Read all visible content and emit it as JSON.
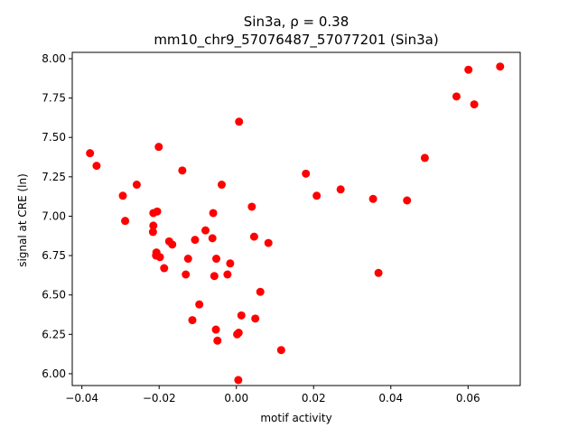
{
  "chart_data": {
    "type": "scatter",
    "title_line1": "Sin3a, ρ = 0.38",
    "title_line2": "mm10_chr9_57076487_57077201 (Sin3a)",
    "xlabel": "motif activity",
    "ylabel": "signal at CRE (ln)",
    "xlim": [
      -0.0425,
      0.0735
    ],
    "ylim": [
      5.925,
      8.04
    ],
    "xticks": [
      -0.04,
      -0.02,
      0.0,
      0.02,
      0.04,
      0.06
    ],
    "xtick_labels": [
      "−0.04",
      "−0.02",
      "0.00",
      "0.02",
      "0.04",
      "0.06"
    ],
    "yticks": [
      6.0,
      6.25,
      6.5,
      6.75,
      7.0,
      7.25,
      7.5,
      7.75,
      8.0
    ],
    "ytick_labels": [
      "6.00",
      "6.25",
      "6.50",
      "6.75",
      "7.00",
      "7.25",
      "7.50",
      "7.75",
      "8.00"
    ],
    "grid": false,
    "marker_color": "#ff0000",
    "points": [
      {
        "x": -0.0379,
        "y": 7.4
      },
      {
        "x": -0.0362,
        "y": 7.32
      },
      {
        "x": -0.0294,
        "y": 7.13
      },
      {
        "x": -0.0288,
        "y": 6.97
      },
      {
        "x": -0.0258,
        "y": 7.2
      },
      {
        "x": -0.0215,
        "y": 7.02
      },
      {
        "x": -0.0215,
        "y": 6.94
      },
      {
        "x": -0.0216,
        "y": 6.9
      },
      {
        "x": -0.0205,
        "y": 7.03
      },
      {
        "x": -0.0207,
        "y": 6.77
      },
      {
        "x": -0.0208,
        "y": 6.75
      },
      {
        "x": -0.0198,
        "y": 6.74
      },
      {
        "x": -0.0201,
        "y": 7.44
      },
      {
        "x": -0.0187,
        "y": 6.67
      },
      {
        "x": -0.0174,
        "y": 6.84
      },
      {
        "x": -0.0166,
        "y": 6.82
      },
      {
        "x": -0.014,
        "y": 7.29
      },
      {
        "x": -0.0131,
        "y": 6.63
      },
      {
        "x": -0.0125,
        "y": 6.73
      },
      {
        "x": -0.0114,
        "y": 6.34
      },
      {
        "x": -0.0107,
        "y": 6.85
      },
      {
        "x": -0.0096,
        "y": 6.44
      },
      {
        "x": -0.008,
        "y": 6.91
      },
      {
        "x": -0.0062,
        "y": 6.86
      },
      {
        "x": -0.006,
        "y": 7.02
      },
      {
        "x": -0.0057,
        "y": 6.62
      },
      {
        "x": -0.0052,
        "y": 6.73
      },
      {
        "x": -0.0053,
        "y": 6.28
      },
      {
        "x": -0.0049,
        "y": 6.21
      },
      {
        "x": -0.0038,
        "y": 7.2
      },
      {
        "x": -0.0023,
        "y": 6.63
      },
      {
        "x": -0.0016,
        "y": 6.7
      },
      {
        "x": 0.0002,
        "y": 6.25
      },
      {
        "x": 0.0006,
        "y": 6.26
      },
      {
        "x": 0.0005,
        "y": 5.96
      },
      {
        "x": 0.0007,
        "y": 7.6
      },
      {
        "x": 0.0013,
        "y": 6.37
      },
      {
        "x": 0.004,
        "y": 7.06
      },
      {
        "x": 0.0046,
        "y": 6.87
      },
      {
        "x": 0.0049,
        "y": 6.35
      },
      {
        "x": 0.0062,
        "y": 6.52
      },
      {
        "x": 0.0083,
        "y": 6.83
      },
      {
        "x": 0.0116,
        "y": 6.15
      },
      {
        "x": 0.018,
        "y": 7.27
      },
      {
        "x": 0.0208,
        "y": 7.13
      },
      {
        "x": 0.027,
        "y": 7.17
      },
      {
        "x": 0.0354,
        "y": 7.11
      },
      {
        "x": 0.0368,
        "y": 6.64
      },
      {
        "x": 0.0442,
        "y": 7.1
      },
      {
        "x": 0.0488,
        "y": 7.37
      },
      {
        "x": 0.057,
        "y": 7.76
      },
      {
        "x": 0.0601,
        "y": 7.93
      },
      {
        "x": 0.0616,
        "y": 7.71
      },
      {
        "x": 0.0683,
        "y": 7.95
      }
    ]
  }
}
